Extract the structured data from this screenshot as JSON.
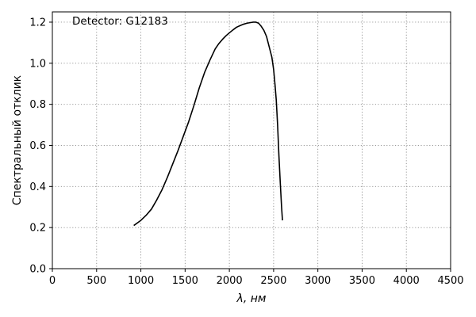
{
  "chart_data": {
    "type": "line",
    "title": "",
    "annotation": "Detector: G12183",
    "xlabel": "λ, нм",
    "ylabel": "Спектральный отклик",
    "xlim": [
      0,
      4500
    ],
    "ylim": [
      0,
      1.25
    ],
    "xticks": [
      0,
      500,
      1000,
      1500,
      2000,
      2500,
      3000,
      3500,
      4000,
      4500
    ],
    "yticks": [
      0.0,
      0.2,
      0.4,
      0.6,
      0.8,
      1.0,
      1.2
    ],
    "xtick_labels": [
      "0",
      "500",
      "1000",
      "1500",
      "2000",
      "2500",
      "3000",
      "3500",
      "4000",
      "4500"
    ],
    "ytick_labels": [
      "0.0",
      "0.2",
      "0.4",
      "0.6",
      "0.8",
      "1.0",
      "1.2"
    ],
    "grid": true,
    "line_color": "#000000",
    "series": [
      {
        "x": [
          920,
          1000,
          1060,
          1120,
          1180,
          1240,
          1300,
          1360,
          1420,
          1480,
          1540,
          1600,
          1660,
          1720,
          1780,
          1840,
          1880,
          1920,
          1960,
          2000,
          2040,
          2080,
          2120,
          2160,
          2200,
          2240,
          2270,
          2300,
          2330,
          2360,
          2390,
          2420,
          2450,
          2480,
          2500,
          2515,
          2530,
          2545,
          2560,
          2575,
          2590,
          2600
        ],
        "y": [
          0.21,
          0.235,
          0.26,
          0.29,
          0.335,
          0.385,
          0.445,
          0.51,
          0.575,
          0.645,
          0.715,
          0.795,
          0.88,
          0.955,
          1.015,
          1.07,
          1.095,
          1.115,
          1.133,
          1.148,
          1.162,
          1.175,
          1.183,
          1.19,
          1.195,
          1.198,
          1.2,
          1.2,
          1.195,
          1.18,
          1.16,
          1.13,
          1.08,
          1.03,
          0.97,
          0.9,
          0.82,
          0.7,
          0.55,
          0.42,
          0.3,
          0.235
        ]
      }
    ]
  }
}
